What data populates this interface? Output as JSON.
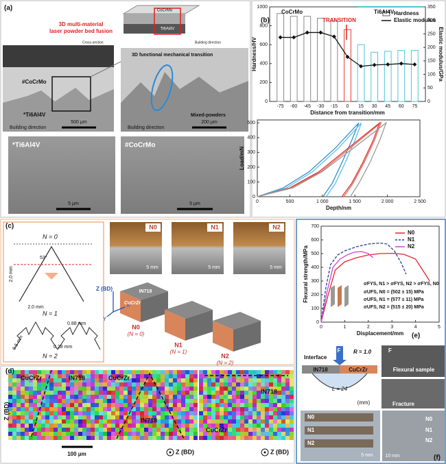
{
  "panel_labels": [
    "(a)",
    "(b)",
    "(c)",
    "(d)",
    "(e)",
    "(f)"
  ],
  "a": {
    "title_lines": [
      "3D multi-material",
      "laser powder bed fusion"
    ],
    "block_top": "CoCrMo",
    "block_bottom": "Ti6Al4V",
    "cross_section": "Cross-section",
    "building_direction": "Building direction",
    "overview": {
      "top": "#CoCrMo",
      "bottom": "*Ti6Al4V",
      "direction": "Building direction",
      "scale": "500 μm"
    },
    "zoom": {
      "title": "3D functional mechanical transition",
      "note": "Mixed-powders",
      "direction": "Building direction",
      "scale": "200 μm"
    },
    "sem": [
      {
        "label": "*Ti6Al4V",
        "scale": "5 μm"
      },
      {
        "label": "#CoCrMo",
        "scale": "5 μm"
      }
    ]
  },
  "c": {
    "schematic": {
      "n0": "N = 0",
      "angle": "53°",
      "height": "2.0 mm",
      "width": "2.0 mm",
      "n1": "N = 1",
      "d1": "0.88 mm",
      "d2": "0.5 mm",
      "d3": "0.28 mm",
      "n2": "N = 2"
    },
    "photos": [
      {
        "label": "N0",
        "scale": "5 mm"
      },
      {
        "label": "N1",
        "scale": "5 mm"
      },
      {
        "label": "N2",
        "scale": "5 mm"
      }
    ],
    "axes": {
      "z": "Z (BD)",
      "x": "X",
      "y": "Y"
    },
    "materials": {
      "top": "IN718",
      "bottom": "CuCrZr"
    },
    "blocks": [
      {
        "name": "N0",
        "order": "(N = 0)"
      },
      {
        "name": "N1",
        "order": "(N = 1)"
      },
      {
        "name": "N2",
        "order": "(N = 2)"
      }
    ]
  },
  "d": {
    "maps": [
      {
        "left": "CuCrZr",
        "right": "IN718"
      },
      {
        "left": "CuCrZr",
        "right": "IN718"
      },
      {
        "left": "CuCrZr",
        "right": "IN718"
      }
    ],
    "direction": "Z (BD)",
    "scale": "100 μm",
    "normal": [
      "Z (BD)",
      "Z (BD)"
    ]
  },
  "f": {
    "interface": "Interface",
    "force": "F",
    "radius": "R = 1.0",
    "left": "IN718",
    "right": "CuCrZr",
    "span": "L = 24",
    "unit": "(mm)",
    "sample": "Flexural sample",
    "force2": "F",
    "fracture": "Fracture",
    "specimens": [
      "N0",
      "N1",
      "N2"
    ],
    "scale": "5 mm",
    "specimens2": [
      "N0",
      "N1",
      "N2"
    ],
    "scale2": "10 mm"
  },
  "chart_data": [
    {
      "type": "bar",
      "x": [
        -75,
        -60,
        -45,
        -30,
        -15,
        0,
        15,
        30,
        45,
        60,
        75
      ],
      "xlabel": "Distance from transition/mm",
      "ylabel": "Hardness/HV",
      "y2label": "Elastic modulus/GPa",
      "xlim": [
        -87,
        87
      ],
      "xticks": [
        -75,
        -60,
        -45,
        -30,
        -15,
        0,
        15,
        30,
        45,
        60,
        75
      ],
      "ylim": [
        0,
        1000
      ],
      "yticks": [
        0,
        200,
        400,
        600,
        800,
        1000
      ],
      "y2lim": [
        0,
        350
      ],
      "y2ticks": [
        0,
        50,
        100,
        150,
        200,
        250,
        300,
        350
      ],
      "legend": "upper right",
      "annotations": [
        "CoCrMo",
        "TRANSITION",
        "Ti6Al4V"
      ],
      "series": [
        {
          "name": "Hardness",
          "color": "#ffffff",
          "edge_colors": [
            "#888888",
            "#888888",
            "#888888",
            "#888888",
            "#888888",
            "#e03a2f",
            "#4fc3d9",
            "#4fc3d9",
            "#4fc3d9",
            "#4fc3d9",
            "#4fc3d9"
          ],
          "values": [
            930,
            900,
            900,
            880,
            850,
            760,
            600,
            520,
            530,
            540,
            540
          ]
        },
        {
          "name": "Elastic modulus",
          "type": "line",
          "marker": true,
          "color": "#111111",
          "axis": "y2",
          "values": [
            237,
            237,
            255,
            255,
            240,
            165,
            130,
            135,
            137,
            140,
            137
          ]
        }
      ]
    },
    {
      "type": "line",
      "xlabel": "Depth/nm",
      "ylabel": "Load/mN",
      "xlim": [
        0,
        2500
      ],
      "xticks": [
        0,
        500,
        {
          "value": 1000,
          "label": "1 000"
        },
        {
          "value": 1500,
          "label": "1 500"
        },
        {
          "value": 2000,
          "label": "2 000"
        },
        {
          "value": 2500,
          "label": "2 500"
        }
      ],
      "ylim": [
        0,
        520
      ],
      "yticks": [
        0,
        100,
        200,
        300,
        400,
        500
      ],
      "series": [
        {
          "color": "#2f8fd2",
          "x": [
            0,
            400,
            800,
            1200,
            1560,
            1450,
            1300,
            1150,
            1010
          ],
          "values": [
            0,
            60,
            170,
            330,
            500,
            380,
            230,
            90,
            0
          ]
        },
        {
          "color": "#5cc0e6",
          "x": [
            0,
            450,
            850,
            1250,
            1600,
            1500,
            1350,
            1200,
            1060
          ],
          "values": [
            0,
            60,
            170,
            330,
            500,
            380,
            230,
            90,
            0
          ]
        },
        {
          "color": "#d9342b",
          "x": [
            0,
            500,
            950,
            1400,
            1880,
            1780,
            1620,
            1450,
            1300
          ],
          "values": [
            0,
            60,
            170,
            330,
            500,
            380,
            230,
            90,
            0
          ]
        },
        {
          "color": "#e8675e",
          "x": [
            0,
            520,
            980,
            1430,
            1900,
            1800,
            1640,
            1470,
            1330
          ],
          "values": [
            0,
            60,
            170,
            330,
            500,
            380,
            230,
            90,
            0
          ]
        },
        {
          "color": "#9a9a9a",
          "x": [
            0,
            550,
            1000,
            1480,
            1980,
            1880,
            1730,
            1560,
            1430
          ],
          "values": [
            0,
            60,
            170,
            330,
            500,
            380,
            230,
            90,
            0
          ]
        }
      ]
    },
    {
      "type": "line",
      "xlabel": "Displacement/mm",
      "ylabel": "Flexural strength/MPa",
      "xlim": [
        0,
        5
      ],
      "xticks": [
        0,
        1,
        2,
        3,
        4,
        5
      ],
      "ylim": [
        0,
        700
      ],
      "yticks": [
        0,
        100,
        200,
        300,
        400,
        500,
        600,
        700
      ],
      "legend": "upper right",
      "annotations": [
        "σFYS, N1 > σFYS, N2 > σFYS, N0",
        "σUFS, N0 = (502 ± 15) MPa",
        "σUFS, N1 = (577 ± 11) MPa",
        "σUFS, N2 = (515 ± 20) MPa"
      ],
      "series": [
        {
          "name": "N0",
          "color": "#e0262b",
          "x": [
            0,
            0.3,
            0.6,
            1,
            1.5,
            2,
            2.5,
            3,
            3.5,
            4,
            4.3,
            4.6
          ],
          "values": [
            0,
            200,
            380,
            440,
            470,
            490,
            500,
            502,
            495,
            460,
            380,
            300
          ]
        },
        {
          "name": "N1",
          "color": "#1f3d9a",
          "dash": true,
          "x": [
            0,
            0.2,
            0.4,
            0.7,
            1,
            1.5,
            2,
            2.5,
            2.8,
            3.1,
            3.4,
            3.6
          ],
          "values": [
            0,
            250,
            420,
            490,
            520,
            550,
            570,
            577,
            570,
            520,
            430,
            350
          ]
        },
        {
          "name": "N2",
          "color": "#d23fd6",
          "x": [
            0,
            0.25,
            0.5,
            0.8,
            1.1,
            1.4,
            1.7,
            2,
            2.2
          ],
          "values": [
            0,
            220,
            400,
            460,
            490,
            510,
            515,
            500,
            470
          ]
        }
      ]
    }
  ]
}
